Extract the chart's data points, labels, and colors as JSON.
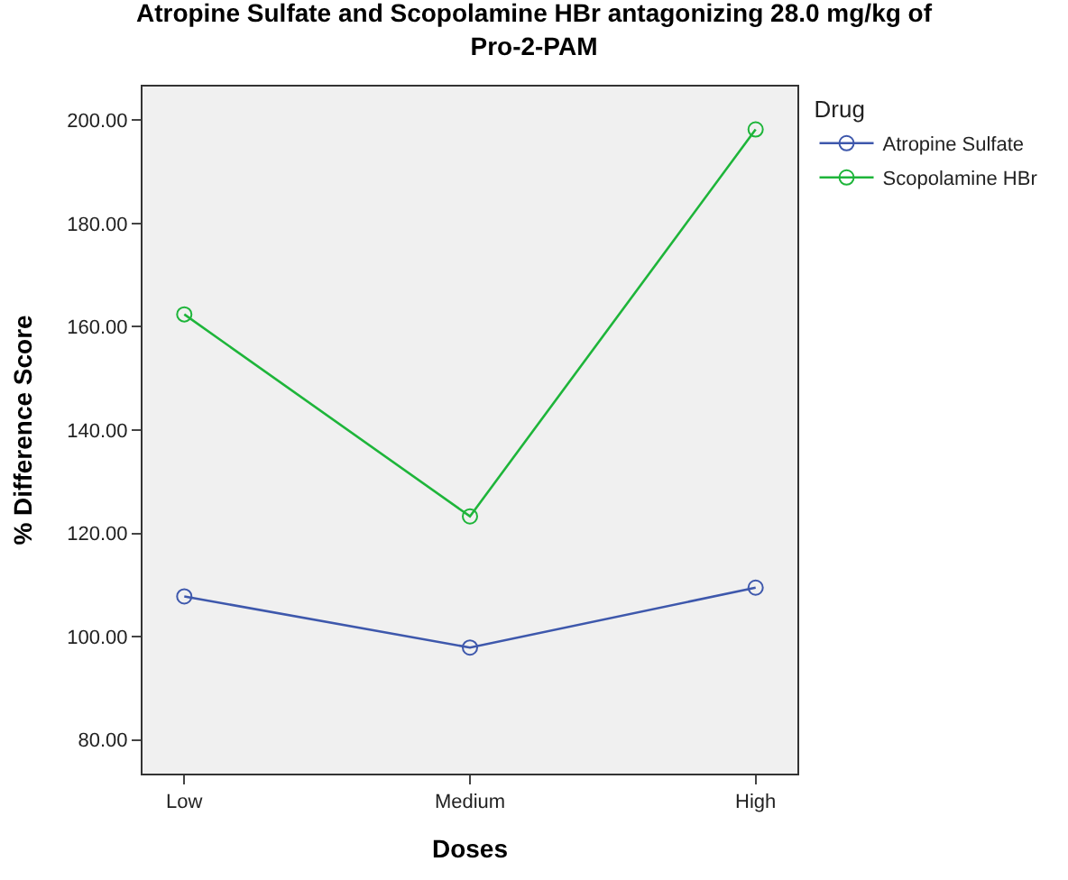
{
  "chart_data": {
    "type": "line",
    "title": "Atropine Sulfate and Scopolamine HBr antagonizing 28.0 mg/kg of Pro-2-PAM",
    "xlabel": "Doses",
    "ylabel": "% Difference Score",
    "legend_title": "Drug",
    "categories": [
      "Low",
      "Medium",
      "High"
    ],
    "series": [
      {
        "name": "Atropine Sulfate",
        "color": "#3e58ac",
        "values": [
          107.8,
          97.9,
          109.5
        ]
      },
      {
        "name": "Scopolamine HBr",
        "color": "#1eb53a",
        "values": [
          162.4,
          123.3,
          198.2
        ]
      }
    ],
    "ylim": [
      73.5,
      206.5
    ],
    "yticks": [
      {
        "value": 80,
        "label": "80.00"
      },
      {
        "value": 100,
        "label": "100.00"
      },
      {
        "value": 120,
        "label": "120.00"
      },
      {
        "value": 140,
        "label": "140.00"
      },
      {
        "value": 160,
        "label": "160.00"
      },
      {
        "value": 180,
        "label": "180.00"
      },
      {
        "value": 200,
        "label": "200.00"
      }
    ],
    "marker": "circle",
    "line_style": "solid",
    "legend": "top right",
    "grid": false
  }
}
